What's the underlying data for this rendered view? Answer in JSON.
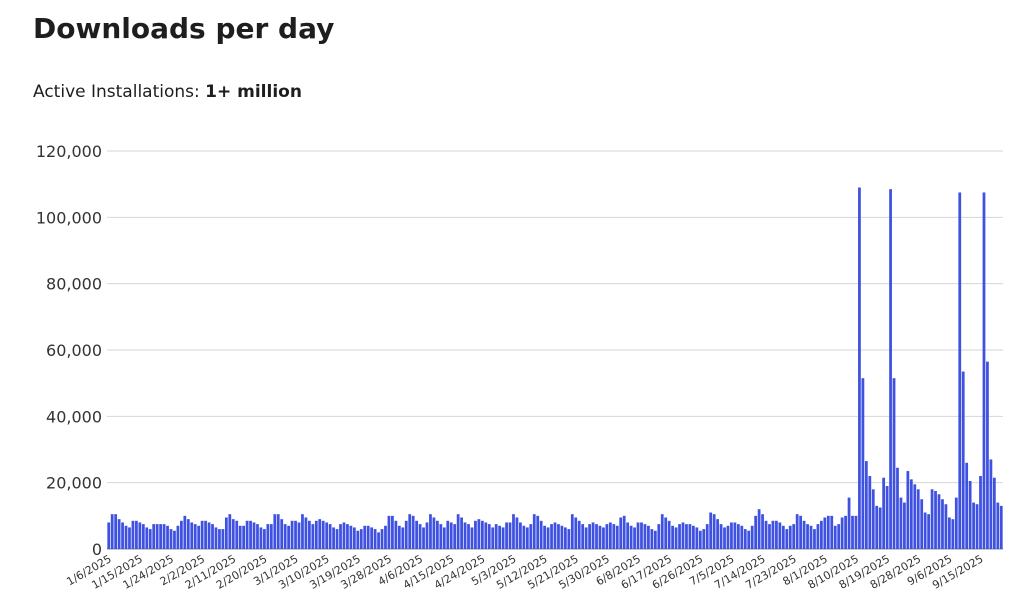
{
  "page": {
    "title": "Downloads per day",
    "installs_label": "Active Installations:",
    "installs_value": "1+ million"
  },
  "chart_data": {
    "type": "bar",
    "color": "#3f51e0",
    "grid": true,
    "ylim": [
      0,
      120000
    ],
    "yticks": [
      0,
      {
        "value": 20000,
        "label": "20,000"
      },
      {
        "value": 40000,
        "label": "40,000"
      },
      {
        "value": 60000,
        "label": "60,000"
      },
      {
        "value": 80000,
        "label": "80,000"
      },
      {
        "value": 100000,
        "label": "100,000"
      },
      {
        "value": 120000,
        "label": "120,000"
      }
    ],
    "categories": [
      null,
      "1/6/2025",
      null,
      null,
      null,
      null,
      null,
      null,
      null,
      null,
      "1/15/2025",
      null,
      null,
      null,
      null,
      null,
      null,
      null,
      null,
      "1/24/2025",
      null,
      null,
      null,
      null,
      null,
      null,
      null,
      null,
      "2/2/2025",
      null,
      null,
      null,
      null,
      null,
      null,
      null,
      null,
      "2/11/2025",
      null,
      null,
      null,
      null,
      null,
      null,
      null,
      null,
      "2/20/2025",
      null,
      null,
      null,
      null,
      null,
      null,
      null,
      null,
      "3/1/2025",
      null,
      null,
      null,
      null,
      null,
      null,
      null,
      null,
      "3/10/2025",
      null,
      null,
      null,
      null,
      null,
      null,
      null,
      null,
      "3/19/2025",
      null,
      null,
      null,
      null,
      null,
      null,
      null,
      null,
      "3/28/2025",
      null,
      null,
      null,
      null,
      null,
      null,
      null,
      null,
      "4/6/2025",
      null,
      null,
      null,
      null,
      null,
      null,
      null,
      null,
      "4/15/2025",
      null,
      null,
      null,
      null,
      null,
      null,
      null,
      null,
      "4/24/2025",
      null,
      null,
      null,
      null,
      null,
      null,
      null,
      null,
      "5/3/2025",
      null,
      null,
      null,
      null,
      null,
      null,
      null,
      null,
      "5/12/2025",
      null,
      null,
      null,
      null,
      null,
      null,
      null,
      null,
      "5/21/2025",
      null,
      null,
      null,
      null,
      null,
      null,
      null,
      null,
      "5/30/2025",
      null,
      null,
      null,
      null,
      null,
      null,
      null,
      null,
      "6/8/2025",
      null,
      null,
      null,
      null,
      null,
      null,
      null,
      null,
      "6/17/2025",
      null,
      null,
      null,
      null,
      null,
      null,
      null,
      null,
      "6/26/2025",
      null,
      null,
      null,
      null,
      null,
      null,
      null,
      null,
      "7/5/2025",
      null,
      null,
      null,
      null,
      null,
      null,
      null,
      null,
      "7/14/2025",
      null,
      null,
      null,
      null,
      null,
      null,
      null,
      null,
      "7/23/2025",
      null,
      null,
      null,
      null,
      null,
      null,
      null,
      null,
      "8/1/2025",
      null,
      null,
      null,
      null,
      null,
      null,
      null,
      null,
      "8/10/2025",
      null,
      null,
      null,
      null,
      null,
      null,
      null,
      null,
      "8/19/2025",
      null,
      null,
      null,
      null,
      null,
      null,
      null,
      null,
      "8/28/2025",
      null,
      null,
      null,
      null,
      null,
      null,
      null,
      null,
      "9/6/2025",
      null,
      null,
      null,
      null,
      null,
      null,
      null,
      null,
      "9/15/2025",
      null,
      null,
      null,
      null,
      null
    ],
    "values": [
      8000,
      10500,
      10500,
      9000,
      8000,
      7000,
      6500,
      8500,
      8500,
      8000,
      7500,
      6500,
      6000,
      7500,
      7500,
      7500,
      7500,
      7000,
      6000,
      5500,
      7000,
      8500,
      10000,
      9000,
      8000,
      7500,
      7000,
      8500,
      8500,
      8000,
      7500,
      6500,
      6000,
      6000,
      9500,
      10500,
      9000,
      8500,
      7000,
      7000,
      8500,
      8500,
      8000,
      7500,
      6500,
      6000,
      7500,
      7500,
      10500,
      10500,
      9000,
      7500,
      7000,
      8500,
      8500,
      8000,
      10500,
      9500,
      8500,
      7500,
      8500,
      9000,
      8500,
      8000,
      7500,
      6500,
      6000,
      7500,
      8000,
      7500,
      7000,
      6500,
      5500,
      6000,
      7000,
      7000,
      6500,
      6000,
      5000,
      6000,
      7000,
      10000,
      10000,
      8500,
      7000,
      6500,
      8500,
      10500,
      10000,
      8500,
      7500,
      6500,
      8000,
      10500,
      9500,
      8500,
      7500,
      6500,
      8500,
      8000,
      7500,
      10500,
      9500,
      8000,
      7500,
      6500,
      8500,
      9000,
      8500,
      8000,
      7500,
      6500,
      7500,
      7000,
      6500,
      8000,
      8000,
      10500,
      9500,
      8000,
      7000,
      6500,
      7500,
      10500,
      10000,
      8500,
      7000,
      6500,
      7500,
      8000,
      7500,
      7000,
      6500,
      6000,
      10500,
      9500,
      8500,
      7500,
      6500,
      7500,
      8000,
      7500,
      7000,
      6500,
      7500,
      8000,
      7500,
      7000,
      9500,
      10000,
      8000,
      7000,
      6500,
      8000,
      8000,
      7500,
      7000,
      6000,
      5500,
      7500,
      10500,
      9500,
      8500,
      7000,
      6500,
      7500,
      8000,
      7500,
      7500,
      7000,
      6500,
      5500,
      6000,
      7500,
      11000,
      10500,
      9000,
      7500,
      6500,
      7000,
      8000,
      8000,
      7500,
      7000,
      6000,
      5500,
      7000,
      10000,
      12000,
      10500,
      8500,
      7500,
      8500,
      8500,
      8000,
      7000,
      6000,
      7000,
      7500,
      10500,
      10000,
      8500,
      7500,
      7000,
      6000,
      7500,
      8500,
      9500,
      10000,
      10000,
      7000,
      7500,
      9500,
      10000,
      15500,
      10000,
      10000,
      109000,
      51500,
      26500,
      22000,
      18000,
      13000,
      12500,
      21500,
      19000,
      108500,
      51500,
      24500,
      15500,
      14000,
      23500,
      21000,
      19500,
      18000,
      15000,
      11000,
      10500,
      18000,
      17500,
      16500,
      15000,
      13500,
      9500,
      9000,
      15500,
      107500,
      53500,
      26000,
      20500,
      14000,
      13500,
      22000,
      107500,
      56500,
      27000,
      21500,
      14000,
      13000
    ]
  }
}
